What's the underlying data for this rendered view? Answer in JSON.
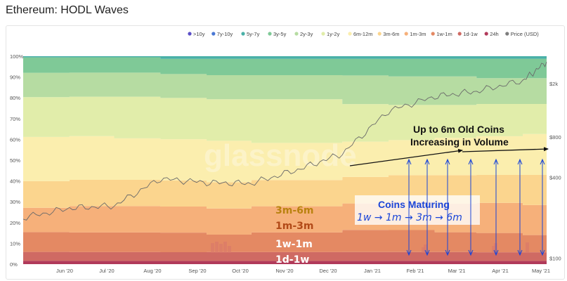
{
  "title": "Ethereum: HODL Waves",
  "watermark": "glassnode",
  "annotations": {
    "top_line1": "Up to 6m Old Coins",
    "top_line2": "Increasing in Volume",
    "coins_maturing": "Coins Maturing",
    "sequence": "1w → 1m → 3m → 6m"
  },
  "band_labels": [
    "3m-6m",
    "1m-3m",
    "1w-1m",
    "1d-1w"
  ],
  "chart_data": {
    "type": "area",
    "title": "Ethereum: HODL Waves",
    "stacked": true,
    "legend_position": "top-right",
    "x_ticks": [
      "Jun '20",
      "Jul '20",
      "Aug '20",
      "Sep '20",
      "Oct '20",
      "Nov '20",
      "Dec '20",
      "Jan '21",
      "Feb '21",
      "Mar '21",
      "Apr '21",
      "May '21"
    ],
    "y_left_ticks": [
      "0%",
      "10%",
      "20%",
      "30%",
      "40%",
      "50%",
      "60%",
      "70%",
      "80%",
      "90%",
      "100%"
    ],
    "y_left_range": [
      0,
      100
    ],
    "y_right_ticks": [
      "$100",
      "$400",
      "$800",
      "$2k"
    ],
    "y_right_scale": "log",
    "x": [
      "2020-05-15",
      "2020-06-15",
      "2020-07-15",
      "2020-08-15",
      "2020-09-15",
      "2020-10-15",
      "2020-11-15",
      "2020-12-15",
      "2021-01-15",
      "2021-02-15",
      "2021-03-15",
      "2021-04-15",
      "2021-05-01"
    ],
    "series": [
      {
        "name": ">10y",
        "color": "#5b4fc7",
        "values": [
          0,
          0,
          0,
          0,
          0,
          0,
          0,
          0,
          0,
          0,
          0,
          0,
          0
        ]
      },
      {
        "name": "7y-10y",
        "color": "#4a78d4",
        "values": [
          0,
          0,
          0,
          0,
          0,
          0,
          0,
          0,
          0,
          0,
          0,
          0,
          0
        ]
      },
      {
        "name": "5y-7y",
        "color": "#4ab1a8",
        "values": [
          0.5,
          0.5,
          0.5,
          1.2,
          1.2,
          1.2,
          1.2,
          1.2,
          1.2,
          1.2,
          1.2,
          1.2,
          1.2
        ]
      },
      {
        "name": "3y-5y",
        "color": "#7fc997",
        "values": [
          7,
          7,
          7,
          7,
          7.5,
          7.5,
          7.5,
          7.5,
          8,
          8,
          9,
          9,
          9
        ]
      },
      {
        "name": "2y-3y",
        "color": "#b6dca2",
        "values": [
          11,
          11,
          11,
          11,
          11,
          11,
          11,
          13,
          13,
          13,
          12,
          12,
          12
        ]
      },
      {
        "name": "1y-2y",
        "color": "#e1edaa",
        "values": [
          18,
          18,
          19,
          19,
          19,
          20,
          20,
          17,
          16,
          15,
          15,
          14,
          14
        ]
      },
      {
        "name": "6m-12m",
        "color": "#fbeeae",
        "values": [
          20,
          20,
          19,
          19,
          19,
          17,
          17,
          16,
          16,
          17,
          18,
          19,
          19
        ]
      },
      {
        "name": "3m-6m",
        "color": "#fbd58e",
        "values": [
          12,
          12,
          12,
          12,
          12,
          12,
          12,
          12,
          12,
          13,
          13,
          14,
          15
        ]
      },
      {
        "name": "1m-3m",
        "color": "#f6b07a",
        "values": [
          11,
          12,
          12,
          12,
          12,
          12,
          12,
          12,
          13,
          13,
          14,
          14,
          13
        ]
      },
      {
        "name": "1w-1m",
        "color": "#e48963",
        "values": [
          9,
          9,
          9,
          9,
          8,
          9,
          9,
          10,
          10,
          9,
          9,
          8,
          8
        ]
      },
      {
        "name": "1d-1w",
        "color": "#cf6a63",
        "values": [
          4,
          4,
          4,
          4,
          4,
          4,
          4,
          4,
          4,
          4,
          4,
          4,
          4
        ]
      },
      {
        "name": "24h",
        "color": "#b13a5a",
        "values": [
          1.5,
          1.5,
          1.5,
          1.5,
          1.5,
          1.5,
          1.5,
          1.5,
          1.5,
          1.5,
          1.5,
          1.5,
          1.5
        ]
      }
    ],
    "price_series": {
      "name": "Price (USD)",
      "color": "#7d7d7d",
      "values": [
        200,
        235,
        245,
        390,
        365,
        360,
        455,
        600,
        1250,
        1600,
        1750,
        2100,
        2900
      ]
    }
  }
}
